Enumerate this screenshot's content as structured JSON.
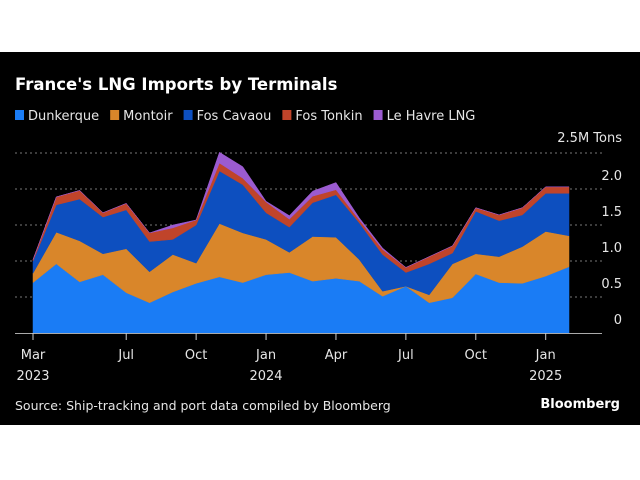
{
  "chart_data": {
    "type": "area",
    "stacked": true,
    "title": "France's LNG Imports by Terminals",
    "unit_label": "2.5M Tons",
    "source": "Source: Ship-tracking and port data compiled by Bloomberg",
    "brand": "Bloomberg",
    "x": [
      "2023-03",
      "2023-04",
      "2023-05",
      "2023-06",
      "2023-07",
      "2023-08",
      "2023-09",
      "2023-10",
      "2023-11",
      "2023-12",
      "2024-01",
      "2024-02",
      "2024-03",
      "2024-04",
      "2024-05",
      "2024-06",
      "2024-07",
      "2024-08",
      "2024-09",
      "2024-10",
      "2024-11",
      "2024-12",
      "2025-01",
      "2025-02"
    ],
    "x_ticks": [
      {
        "x": "2023-03",
        "label": "Mar",
        "year": "2023"
      },
      {
        "x": "2023-07",
        "label": "Jul",
        "year": ""
      },
      {
        "x": "2023-10",
        "label": "Oct",
        "year": ""
      },
      {
        "x": "2024-01",
        "label": "Jan",
        "year": "2024"
      },
      {
        "x": "2024-04",
        "label": "Apr",
        "year": ""
      },
      {
        "x": "2024-07",
        "label": "Jul",
        "year": ""
      },
      {
        "x": "2024-10",
        "label": "Oct",
        "year": ""
      },
      {
        "x": "2025-01",
        "label": "Jan",
        "year": "2025"
      }
    ],
    "y_ticks": [
      {
        "value": 0,
        "label": "0"
      },
      {
        "value": 0.5,
        "label": "0.5"
      },
      {
        "value": 1.0,
        "label": "1.0"
      },
      {
        "value": 1.5,
        "label": "1.5"
      },
      {
        "value": 2.0,
        "label": "2.0"
      },
      {
        "value": 2.5,
        "label": ""
      }
    ],
    "ylim": [
      0,
      2.5
    ],
    "grid": true,
    "legend_position": "top-left",
    "series": [
      {
        "name": "Dunkerque",
        "color": "#1a7cf5",
        "values": [
          0.7,
          0.96,
          0.71,
          0.81,
          0.56,
          0.42,
          0.57,
          0.69,
          0.78,
          0.7,
          0.81,
          0.84,
          0.72,
          0.76,
          0.72,
          0.51,
          0.65,
          0.42,
          0.49,
          0.82,
          0.7,
          0.69,
          0.79,
          0.92
        ]
      },
      {
        "name": "Montoir",
        "color": "#d9862a",
        "values": [
          0.13,
          0.44,
          0.57,
          0.29,
          0.61,
          0.43,
          0.52,
          0.28,
          0.74,
          0.69,
          0.49,
          0.28,
          0.62,
          0.57,
          0.3,
          0.07,
          0.0,
          0.11,
          0.47,
          0.28,
          0.36,
          0.51,
          0.62,
          0.43
        ]
      },
      {
        "name": "Fos Cavaou",
        "color": "#0d4fbf",
        "values": [
          0.17,
          0.38,
          0.58,
          0.51,
          0.54,
          0.42,
          0.21,
          0.53,
          0.73,
          0.67,
          0.37,
          0.35,
          0.47,
          0.59,
          0.51,
          0.51,
          0.19,
          0.43,
          0.15,
          0.59,
          0.5,
          0.44,
          0.53,
          0.59
        ]
      },
      {
        "name": "Fos Tonkin",
        "color": "#c0442a",
        "values": [
          0.02,
          0.11,
          0.12,
          0.06,
          0.09,
          0.12,
          0.16,
          0.07,
          0.11,
          0.09,
          0.15,
          0.11,
          0.09,
          0.07,
          0.04,
          0.07,
          0.07,
          0.1,
          0.1,
          0.05,
          0.08,
          0.1,
          0.09,
          0.09
        ]
      },
      {
        "name": "Le Havre LNG",
        "color": "#9b5bd0",
        "values": [
          0,
          0,
          0,
          0,
          0,
          0,
          0.04,
          0,
          0.15,
          0.16,
          0.01,
          0.05,
          0.07,
          0.1,
          0.03,
          0.02,
          0,
          0,
          0,
          0,
          0,
          0,
          0,
          0
        ]
      }
    ]
  }
}
